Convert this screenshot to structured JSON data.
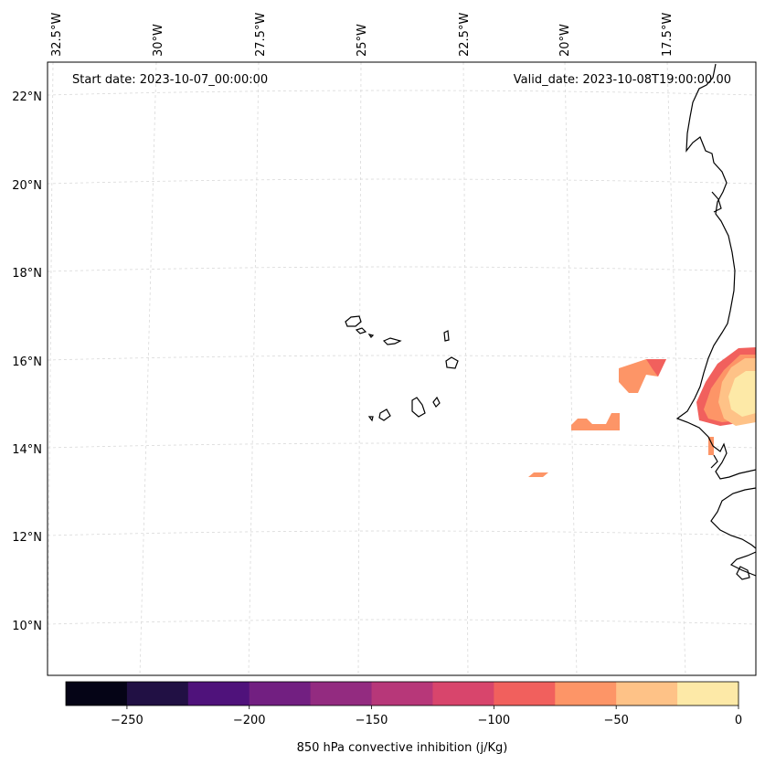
{
  "map": {
    "start_date": "Start date: 2023-10-07_00:00:00",
    "valid_date": "Valid_date: 2023-10-08T19:00:00.00",
    "lon_labels": [
      "32.5°W",
      "30°W",
      "27.5°W",
      "25°W",
      "22.5°W",
      "20°W",
      "17.5°W"
    ],
    "lat_labels": [
      "22°N",
      "20°N",
      "18°N",
      "16°N",
      "14°N",
      "12°N",
      "10°N"
    ],
    "gridlines": true,
    "coastline_color": "#000000",
    "gridline_color": "#d9d9d9",
    "field_colors": {
      "minus_100": "#f1605d",
      "minus_75": "#fd9567",
      "minus_50": "#fec287",
      "minus_25": "#fde9a7"
    }
  },
  "colorbar": {
    "title": "850 hPa convective inhibition (j/Kg)",
    "tick_labels": [
      "−250",
      "−200",
      "−150",
      "−100",
      "−50",
      "0"
    ],
    "levels": [
      -275,
      -250,
      -225,
      -200,
      -175,
      -150,
      -125,
      -100,
      -75,
      -50,
      -25,
      0
    ],
    "colors": [
      "#050416",
      "#211044",
      "#4f127b",
      "#721f81",
      "#932b80",
      "#b73779",
      "#d8456c",
      "#f1605d",
      "#fd9567",
      "#fec287",
      "#fde9a7"
    ]
  }
}
